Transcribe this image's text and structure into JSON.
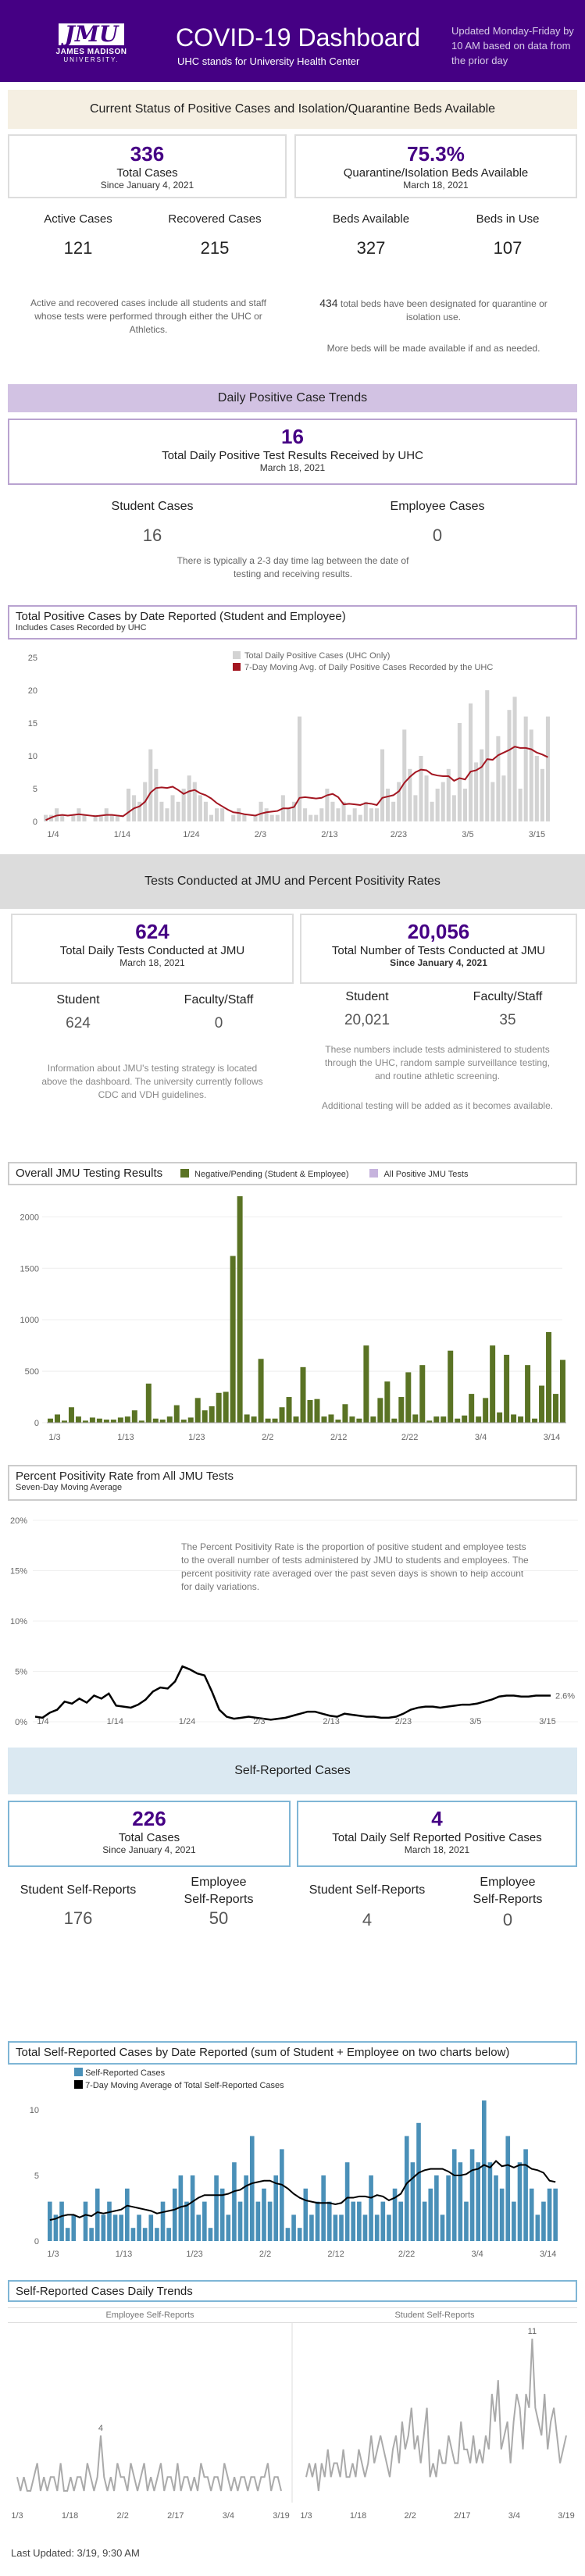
{
  "header": {
    "logo_main": "JMU",
    "logo_sub": "JAMES MADISON",
    "logo_sub2": "UNIVERSITY.",
    "title": "COVID-19 Dashboard",
    "subtitle": "UHC stands for University Health Center",
    "update_note": "Updated Monday-Friday by 10 AM based on data from the prior day"
  },
  "status": {
    "band": "Current Status of Positive Cases and Isolation/Quarantine Beds Available",
    "total_cases_value": "336",
    "total_cases_label": "Total Cases",
    "total_cases_sub": "Since January 4, 2021",
    "beds_pct": "75.3%",
    "beds_pct_label": "Quarantine/Isolation Beds Available",
    "beds_pct_sub": "March 18, 2021",
    "active_label": "Active Cases",
    "active_value": "121",
    "recovered_label": "Recovered Cases",
    "recovered_value": "215",
    "beds_avail_label": "Beds Available",
    "beds_avail_value": "327",
    "beds_use_label": "Beds in Use",
    "beds_use_value": "107",
    "note_left": "Active and recovered cases include all students and staff whose tests were performed through either the UHC or Athletics.",
    "note_right_num": "434",
    "note_right": "total beds have been designated for quarantine or isolation use.",
    "note_right2": "More beds will be made available if and as needed."
  },
  "daily": {
    "band": "Daily Positive Case Trends",
    "value": "16",
    "label": "Total Daily Positive Test Results Received by UHC",
    "sub": "March 18, 2021",
    "student_label": "Student Cases",
    "student_value": "16",
    "employee_label": "Employee Cases",
    "employee_value": "0",
    "note": "There is typically a 2-3 day time lag between the date of testing and receiving results."
  },
  "chart1": {
    "title": "Total Positive Cases by Date Reported (Student and Employee)",
    "subtitle": "Includes Cases Recorded by UHC",
    "legend1": "Total Daily Positive Cases (UHC Only)",
    "legend2": "7-Day Moving Avg. of Daily Positive Cases Recorded by the UHC",
    "colors": {
      "bar": "#d3d3d3",
      "line": "#a31621"
    }
  },
  "tests": {
    "band": "Tests Conducted at JMU and Percent Positivity Rates",
    "daily_value": "624",
    "daily_label": "Total Daily Tests Conducted at JMU",
    "daily_sub": "March 18, 2021",
    "total_value": "20,056",
    "total_label": "Total Number of Tests Conducted at JMU",
    "total_sub": "Since January 4, 2021",
    "student_label": "Student",
    "faculty_label": "Faculty/Staff",
    "daily_student": "624",
    "daily_faculty": "0",
    "total_student": "20,021",
    "total_faculty": "35",
    "note_left": "Information about JMU's testing strategy is located above the dashboard. The university currently follows CDC and VDH guidelines.",
    "note_right": "These numbers include tests administered to students through the UHC, random sample surveillance testing, and routine athletic screening.",
    "note_right2": "Additional testing will be added as it becomes available."
  },
  "chart2": {
    "title": "Overall JMU Testing Results",
    "legend1": "Negative/Pending (Student & Employee)",
    "legend2": "All Positive JMU Tests",
    "colors": {
      "bar": "#5a7324",
      "pos": "#c6b3dd"
    }
  },
  "chart3": {
    "title": "Percent Positivity Rate from All JMU Tests",
    "subtitle": "Seven-Day Moving Average",
    "note": "The Percent Positivity Rate is the proportion of positive student and employee tests to the overall number of tests administered by JMU to students and employees.   The percent positivity rate averaged over the past seven days is shown to help account for daily variations.",
    "end_label": "2.6%"
  },
  "self": {
    "band": "Self-Reported Cases",
    "total_value": "226",
    "total_label": "Total Cases",
    "total_sub": "Since January 4, 2021",
    "daily_value": "4",
    "daily_label": "Total Daily Self Reported Positive Cases",
    "daily_sub": "March 18, 2021",
    "student_label": "Student Self-Reports",
    "employee_label1": "Employee",
    "employee_label2": "Self-Reports",
    "total_student": "176",
    "total_employee": "50",
    "daily_student": "4",
    "daily_employee": "0"
  },
  "chart4": {
    "title": "Total Self-Reported Cases by Date Reported (sum of Student + Employee on two charts below)",
    "legend1": "Self-Reported Cases",
    "legend2": "7-Day Moving Average of Total Self-Reported Cases",
    "colors": {
      "bar": "#4a90b8",
      "line": "#000000"
    }
  },
  "chart5": {
    "title": "Self-Reported Cases Daily Trends",
    "left_label": "Employee Self-Reports",
    "right_label": "Student Self-Reports",
    "left_peak": "4",
    "right_peak": "11"
  },
  "footer": {
    "updated": "Last Updated: 3/19, 9:30 AM"
  },
  "chart_data": [
    {
      "type": "bar",
      "title": "Total Positive Cases by Date Reported (Student and Employee)",
      "x_ticks": [
        "1/4",
        "1/14",
        "1/24",
        "2/3",
        "2/13",
        "2/23",
        "3/5",
        "3/15"
      ],
      "ylim": [
        0,
        25
      ],
      "y_ticks": [
        0,
        5,
        10,
        15,
        20,
        25
      ],
      "values": [
        1,
        1,
        2,
        1,
        0,
        1,
        2,
        1,
        0,
        1,
        1,
        2,
        1,
        1,
        0,
        5,
        4,
        3,
        6,
        11,
        8,
        3,
        2,
        4,
        3,
        5,
        7,
        6,
        4,
        3,
        1,
        2,
        2,
        0,
        1,
        2,
        1,
        0,
        1,
        3,
        2,
        1,
        1,
        4,
        2,
        3,
        16,
        2,
        1,
        1,
        2,
        5,
        3,
        2,
        3,
        1,
        2,
        1,
        3,
        2,
        2,
        11,
        5,
        3,
        6,
        14,
        8,
        4,
        10,
        7,
        3,
        5,
        6,
        8,
        4,
        15,
        5,
        18,
        9,
        11,
        20,
        6,
        13,
        7,
        17,
        19,
        5,
        16,
        14,
        10,
        8,
        16
      ],
      "moving_avg": [
        0.2,
        0.6,
        0.9,
        1.0,
        0.9,
        1.0,
        1.1,
        1.0,
        0.9,
        0.8,
        0.9,
        1.0,
        1.0,
        0.9,
        0.8,
        1.4,
        2.0,
        2.3,
        3.0,
        4.4,
        5.1,
        5.2,
        5.1,
        5.3,
        4.8,
        4.2,
        4.6,
        4.8,
        4.3,
        4.0,
        3.5,
        2.8,
        2.3,
        1.8,
        1.4,
        1.3,
        1.1,
        1.0,
        0.9,
        1.2,
        1.4,
        1.5,
        1.6,
        2.0,
        2.0,
        2.2,
        3.6,
        3.7,
        3.6,
        3.5,
        3.6,
        4.0,
        4.2,
        3.7,
        2.6,
        2.7,
        2.6,
        2.5,
        2.8,
        2.7,
        2.5,
        3.6,
        3.8,
        4.0,
        4.6,
        5.9,
        6.8,
        7.5,
        7.9,
        7.8,
        7.2,
        7.0,
        6.9,
        6.9,
        6.2,
        6.6,
        6.4,
        7.6,
        7.8,
        8.3,
        9.5,
        9.4,
        10.1,
        10.5,
        10.9,
        11.4,
        11.2,
        11.2,
        11.0,
        10.5,
        10.2,
        9.8
      ],
      "colors": {
        "bar": "#d3d3d3",
        "line": "#a31621"
      }
    },
    {
      "type": "bar",
      "title": "Overall JMU Testing Results",
      "x_ticks": [
        "1/3",
        "1/13",
        "1/23",
        "2/2",
        "2/12",
        "2/22",
        "3/4",
        "3/14"
      ],
      "ylim": [
        0,
        2200
      ],
      "y_ticks": [
        0,
        500,
        1000,
        1500,
        2000
      ],
      "values": [
        40,
        80,
        20,
        150,
        60,
        20,
        50,
        40,
        30,
        30,
        50,
        60,
        120,
        20,
        380,
        40,
        30,
        60,
        170,
        30,
        50,
        240,
        120,
        160,
        290,
        300,
        1620,
        2200,
        80,
        60,
        620,
        40,
        40,
        150,
        250,
        60,
        540,
        220,
        230,
        60,
        80,
        30,
        180,
        60,
        40,
        750,
        60,
        240,
        400,
        40,
        250,
        490,
        80,
        560,
        20,
        60,
        60,
        700,
        40,
        70,
        280,
        60,
        240,
        750,
        100,
        660,
        80,
        60,
        560,
        40,
        360,
        880,
        280,
        610
      ],
      "colors": {
        "bar": "#5a7324"
      }
    },
    {
      "type": "line",
      "title": "Percent Positivity Rate from All JMU Tests",
      "x_ticks": [
        "1/4",
        "1/14",
        "1/24",
        "2/3",
        "2/13",
        "2/23",
        "3/5",
        "3/15"
      ],
      "ylim": [
        0,
        20
      ],
      "y_ticks": [
        "0%",
        "5%",
        "10%",
        "15%",
        "20%"
      ],
      "values": [
        0.5,
        0.4,
        0.9,
        1.2,
        2.0,
        1.8,
        2.3,
        1.9,
        2.6,
        2.3,
        2.8,
        1.6,
        1.5,
        1.4,
        1.7,
        2.2,
        3.0,
        3.4,
        3.3,
        4.0,
        5.5,
        5.2,
        4.8,
        4.6,
        3.0,
        1.2,
        0.5,
        0.3,
        0.4,
        0.5,
        0.4,
        0.3,
        0.2,
        0.3,
        0.4,
        0.6,
        0.8,
        1.0,
        1.0,
        0.8,
        0.6,
        0.5,
        0.8,
        0.7,
        0.6,
        0.5,
        0.5,
        0.4,
        0.4,
        0.5,
        0.8,
        1.2,
        1.4,
        1.5,
        1.5,
        1.4,
        1.5,
        1.6,
        1.7,
        1.7,
        1.8,
        2.0,
        2.2,
        2.5,
        2.6,
        2.6,
        2.5,
        2.5,
        2.6,
        2.6,
        2.6
      ],
      "end_label": "2.6%"
    },
    {
      "type": "bar",
      "title": "Total Self-Reported Cases by Date Reported",
      "x_ticks": [
        "1/3",
        "1/13",
        "1/23",
        "2/2",
        "2/12",
        "2/22",
        "3/4",
        "3/14"
      ],
      "ylim": [
        0,
        10
      ],
      "y_ticks": [
        0,
        5,
        10
      ],
      "values": [
        3,
        2,
        3,
        1,
        2,
        0,
        3,
        1,
        4,
        2,
        3,
        2,
        2,
        4,
        1,
        2,
        1,
        2,
        1,
        3,
        1,
        4,
        5,
        3,
        5,
        2,
        3,
        1,
        5,
        4,
        2,
        6,
        3,
        5,
        8,
        3,
        4,
        3,
        5,
        7,
        1,
        2,
        1,
        4,
        2,
        3,
        5,
        3,
        2,
        2,
        6,
        3,
        3,
        2,
        5,
        2,
        3,
        2,
        4,
        3,
        8,
        6,
        9,
        3,
        4,
        5,
        2,
        5,
        7,
        6,
        3,
        7,
        6,
        11,
        6,
        5,
        4,
        8,
        3,
        6,
        7,
        4,
        2,
        3,
        4,
        4
      ],
      "moving_avg": [
        1.6,
        1.7,
        1.9,
        2.0,
        2.0,
        1.8,
        2.0,
        1.9,
        2.2,
        2.1,
        2.2,
        2.3,
        2.4,
        2.7,
        2.6,
        2.5,
        2.4,
        2.3,
        2.1,
        2.2,
        2.3,
        2.4,
        2.6,
        2.7,
        3.0,
        3.3,
        3.5,
        3.5,
        3.5,
        3.5,
        3.6,
        3.8,
        3.9,
        4.2,
        4.4,
        4.5,
        4.6,
        4.6,
        4.4,
        4.3,
        4.0,
        3.6,
        3.3,
        3.1,
        3.0,
        2.9,
        2.9,
        2.9,
        2.8,
        2.9,
        3.3,
        3.3,
        3.4,
        3.4,
        3.3,
        3.5,
        3.4,
        3.1,
        3.3,
        3.6,
        4.4,
        4.8,
        5.2,
        5.4,
        5.5,
        5.5,
        5.5,
        5.3,
        5.0,
        5.0,
        5.1,
        5.4,
        5.5,
        5.8,
        5.6,
        6.1,
        5.7,
        5.8,
        5.6,
        5.8,
        5.8,
        5.5,
        5.4,
        5.2,
        4.6,
        4.5
      ],
      "colors": {
        "bar": "#4a90b8",
        "line": "#000000"
      }
    },
    {
      "type": "line",
      "title": "Employee Self-Reports",
      "x_ticks": [
        "1/3",
        "1/18",
        "2/2",
        "2/17",
        "3/4",
        "3/19"
      ],
      "values": [
        1,
        0,
        1,
        0,
        0,
        1,
        2,
        0,
        1,
        0,
        1,
        1,
        0,
        2,
        0,
        0,
        1,
        0,
        1,
        1,
        0,
        2,
        1,
        0,
        1,
        4,
        1,
        0,
        1,
        0,
        2,
        1,
        1,
        0,
        2,
        1,
        0,
        1,
        2,
        0,
        1,
        0,
        1,
        2,
        0,
        1,
        1,
        0,
        2,
        0,
        1,
        1,
        0,
        1,
        0,
        2,
        1,
        1,
        0,
        1,
        1,
        0,
        2,
        1,
        0,
        1,
        0,
        1,
        1,
        0,
        1,
        1,
        0,
        1,
        1,
        2,
        0,
        1,
        1,
        0
      ],
      "peak_label": "4"
    },
    {
      "type": "line",
      "title": "Student Self-Reports",
      "x_ticks": [
        "1/3",
        "1/18",
        "2/2",
        "2/17",
        "3/4",
        "3/19"
      ],
      "values": [
        1,
        2,
        1,
        2,
        0,
        2,
        1,
        3,
        1,
        2,
        2,
        1,
        3,
        1,
        1,
        2,
        1,
        3,
        2,
        1,
        2,
        4,
        2,
        3,
        4,
        3,
        2,
        1,
        3,
        4,
        2,
        5,
        3,
        4,
        6,
        3,
        4,
        2,
        4,
        6,
        1,
        2,
        1,
        3,
        2,
        2,
        4,
        3,
        2,
        2,
        5,
        3,
        3,
        2,
        4,
        2,
        3,
        2,
        4,
        3,
        7,
        5,
        8,
        3,
        4,
        5,
        2,
        5,
        7,
        6,
        3,
        7,
        6,
        11,
        6,
        5,
        4,
        7,
        3,
        5,
        6,
        4,
        2,
        3,
        4
      ],
      "peak_label": "11"
    }
  ]
}
